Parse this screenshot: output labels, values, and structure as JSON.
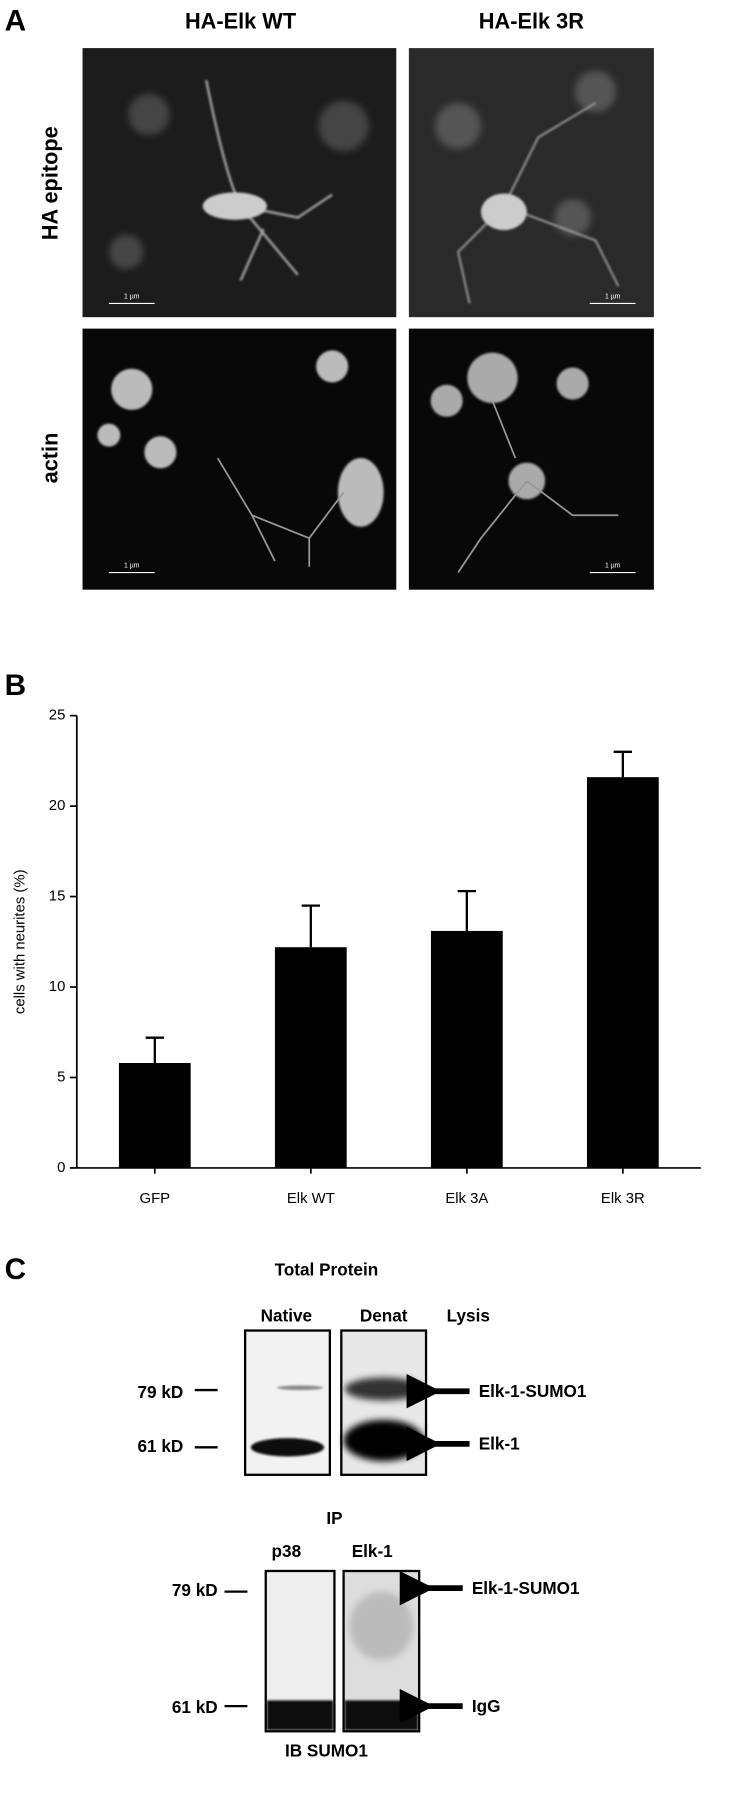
{
  "panel_labels": [
    "A",
    "B",
    "C"
  ],
  "panel_a": {
    "column_headers": [
      "HA-Elk WT",
      "HA-Elk 3R"
    ],
    "row_labels": [
      "HA epitope",
      "actin"
    ],
    "scale_bar_label": "1 µm"
  },
  "chart_data": {
    "type": "bar",
    "categories": [
      "GFP",
      "Elk WT",
      "Elk 3A",
      "Elk 3R"
    ],
    "values": [
      5.8,
      12.2,
      13.1,
      21.6
    ],
    "errors": [
      1.4,
      2.3,
      2.2,
      1.4
    ],
    "color": "#000000",
    "y_label": "cells with neurites (%)",
    "ylim": [
      0,
      25
    ],
    "yticks": [
      0,
      5,
      10,
      15,
      20,
      25
    ]
  },
  "panel_c": {
    "title": "Total Protein",
    "lanes": [
      "Native",
      "Denat"
    ],
    "lysis_label": "Lysis",
    "markers": [
      "79 kD",
      "61 kD"
    ],
    "bands": [
      "Elk-1-SUMO1",
      "Elk-1"
    ],
    "ip_title": "IP",
    "ip_lanes": [
      "p38",
      "Elk-1"
    ],
    "ip_markers": [
      "79 kD",
      "61 kD"
    ],
    "ip_bands": [
      "Elk-1-SUMO1",
      "IgG"
    ],
    "ib_label": "IB SUMO1"
  }
}
